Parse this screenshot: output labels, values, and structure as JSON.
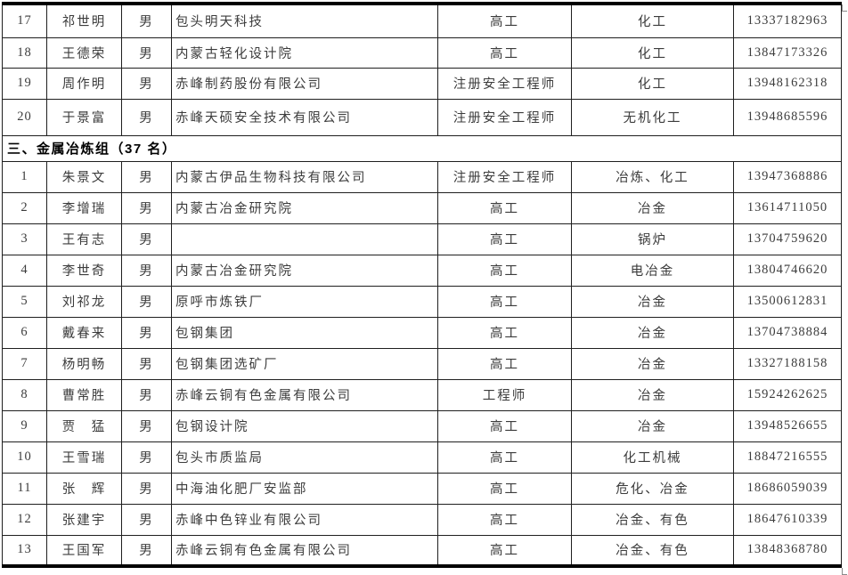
{
  "colors": {
    "border": "#1f1f1f",
    "text": "#3c3c3c",
    "section_text": "#000000"
  },
  "sections": [
    {
      "rows": [
        {
          "no": "17",
          "name": "祁世明",
          "gender": "男",
          "company": "包头明天科技",
          "title": "高工",
          "specialty": "化工",
          "phone": "13337182963"
        },
        {
          "no": "18",
          "name": "王德荣",
          "gender": "男",
          "company": "内蒙古轻化设计院",
          "title": "高工",
          "specialty": "化工",
          "phone": "13847173326"
        },
        {
          "no": "19",
          "name": "周作明",
          "gender": "男",
          "company": "赤峰制药股份有限公司",
          "title": "注册安全工程师",
          "specialty": "化工",
          "phone": "13948162318"
        },
        {
          "no": "20",
          "name": "于景富",
          "gender": "男",
          "company": "赤峰天硕安全技术有限公司",
          "title": "注册安全工程师",
          "specialty": "无机化工",
          "phone": "13948685596"
        }
      ]
    },
    {
      "title": "三、金属冶炼组（37 名）",
      "rows": [
        {
          "no": "1",
          "name": "朱景文",
          "gender": "男",
          "company": "内蒙古伊品生物科技有限公司",
          "title": "注册安全工程师",
          "specialty": "冶炼、化工",
          "phone": "13947368886"
        },
        {
          "no": "2",
          "name": "李增瑞",
          "gender": "男",
          "company": "内蒙古冶金研究院",
          "title": "高工",
          "specialty": "冶金",
          "phone": "13614711050"
        },
        {
          "no": "3",
          "name": "王有志",
          "gender": "男",
          "company": "",
          "title": "高工",
          "specialty": "锅炉",
          "phone": "13704759620"
        },
        {
          "no": "4",
          "name": "李世奇",
          "gender": "男",
          "company": "内蒙古冶金研究院",
          "title": "高工",
          "specialty": "电冶金",
          "phone": "13804746620"
        },
        {
          "no": "5",
          "name": "刘祁龙",
          "gender": "男",
          "company": "原呼市炼铁厂",
          "title": "高工",
          "specialty": "冶金",
          "phone": "13500612831"
        },
        {
          "no": "6",
          "name": "戴春来",
          "gender": "男",
          "company": "包钢集团",
          "title": "高工",
          "specialty": "冶金",
          "phone": "13704738884"
        },
        {
          "no": "7",
          "name": "杨明畅",
          "gender": "男",
          "company": "包钢集团选矿厂",
          "title": "高工",
          "specialty": "冶金",
          "phone": "13327188158"
        },
        {
          "no": "8",
          "name": "曹常胜",
          "gender": "男",
          "company": "赤峰云铜有色金属有限公司",
          "title": "工程师",
          "specialty": "冶金",
          "phone": "15924262625"
        },
        {
          "no": "9",
          "name": "贾　猛",
          "gender": "男",
          "company": "包钢设计院",
          "title": "高工",
          "specialty": "冶金",
          "phone": "13948526655"
        },
        {
          "no": "10",
          "name": "王雪瑞",
          "gender": "男",
          "company": "包头市质监局",
          "title": "高工",
          "specialty": "化工机械",
          "phone": "18847216555"
        },
        {
          "no": "11",
          "name": "张　辉",
          "gender": "男",
          "company": "中海油化肥厂安监部",
          "title": "高工",
          "specialty": "危化、冶金",
          "phone": "18686059039"
        },
        {
          "no": "12",
          "name": "张建宇",
          "gender": "男",
          "company": "赤峰中色锌业有限公司",
          "title": "高工",
          "specialty": "冶金、有色",
          "phone": "18647610339"
        },
        {
          "no": "13",
          "name": "王国军",
          "gender": "男",
          "company": "赤峰云铜有色金属有限公司",
          "title": "高工",
          "specialty": "冶金、有色",
          "phone": "13848368780"
        }
      ]
    }
  ]
}
